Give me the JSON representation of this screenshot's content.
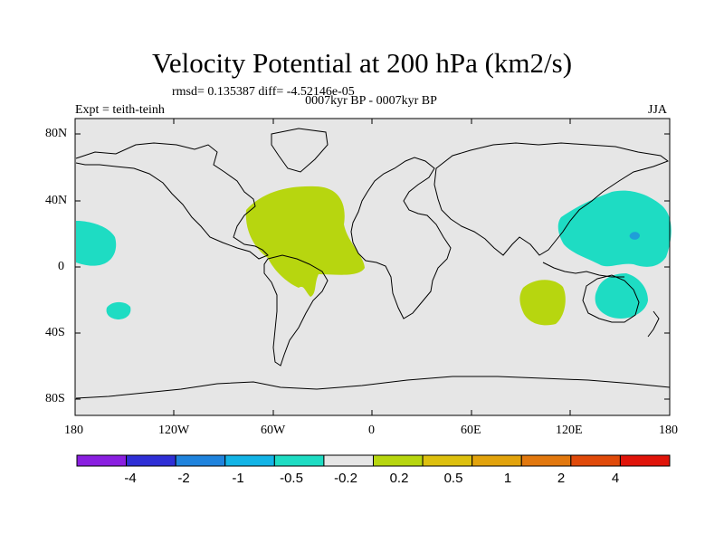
{
  "title": "Velocity Potential at 200 hPa (km2/s)",
  "stats": "rmsd= 0.135387 diff= -4.52146e-05",
  "subtitle": "0007kyr BP - 0007kyr BP",
  "left_label": "Expt = teith-teinh",
  "right_label": "JJA",
  "map": {
    "lat_ticks": [
      "80N",
      "40N",
      "0",
      "40S",
      "80S"
    ],
    "lon_ticks": [
      "180",
      "120W",
      "60W",
      "0",
      "60E",
      "120E",
      "180"
    ],
    "ocean_color": "#e6e6e6",
    "regions": [
      {
        "name": "atlantic-positive-anomaly",
        "category": "0.2 to 0.5",
        "color": "#b7d60f"
      },
      {
        "name": "south-indian-positive-anomaly",
        "category": "0.2 to 0.5",
        "color": "#b7d60f"
      },
      {
        "name": "west-pacific-negative-anomaly",
        "category": "-0.5 to -0.2",
        "color": "#1edcc3"
      },
      {
        "name": "central-pacific-negative-anomaly",
        "category": "-0.5 to -0.2",
        "color": "#1edcc3"
      },
      {
        "name": "south-pacific-negative-anomaly",
        "category": "-0.5 to -0.2",
        "color": "#1edcc3"
      },
      {
        "name": "australia-negative-anomaly",
        "category": "-0.5 to -0.2",
        "color": "#1edcc3"
      },
      {
        "name": "pacific-spot",
        "category": "-1 to -0.5",
        "color": "#1f9fd8"
      }
    ]
  },
  "colorbar": {
    "colors": [
      "#8a1fe0",
      "#2f2fd6",
      "#1f83dd",
      "#13b4e6",
      "#1edcc3",
      "#e6e6e6",
      "#b7d60f",
      "#ddc00e",
      "#e2a30c",
      "#e2780e",
      "#e04a0a",
      "#e0140a"
    ],
    "labels": [
      "-4",
      "-2",
      "-1",
      "-0.5",
      "-0.2",
      "0.2",
      "0.5",
      "1",
      "2",
      "4"
    ]
  }
}
